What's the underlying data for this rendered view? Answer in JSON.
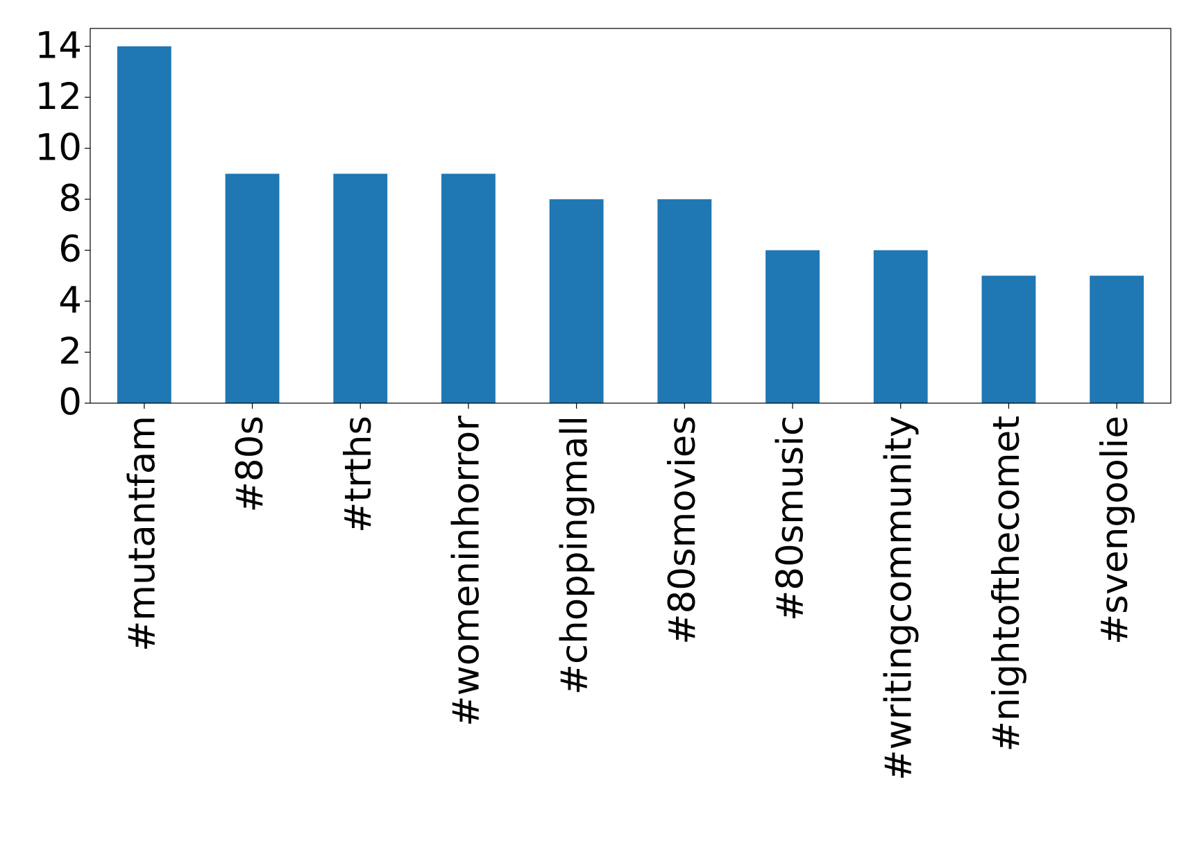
{
  "chart_data": {
    "type": "bar",
    "categories": [
      "#mutantfam",
      "#80s",
      "#trths",
      "#womeninhorror",
      "#choppingmall",
      "#80smovies",
      "#80smusic",
      "#writingcommunity",
      "#nightofthecomet",
      "#svengoolie"
    ],
    "values": [
      14,
      9,
      9,
      9,
      8,
      8,
      6,
      6,
      5,
      5
    ],
    "color": "#1f77b4",
    "ylim": [
      0,
      14.7
    ],
    "yticks": [
      0,
      2,
      4,
      6,
      8,
      10,
      12,
      14
    ],
    "grid": false
  }
}
